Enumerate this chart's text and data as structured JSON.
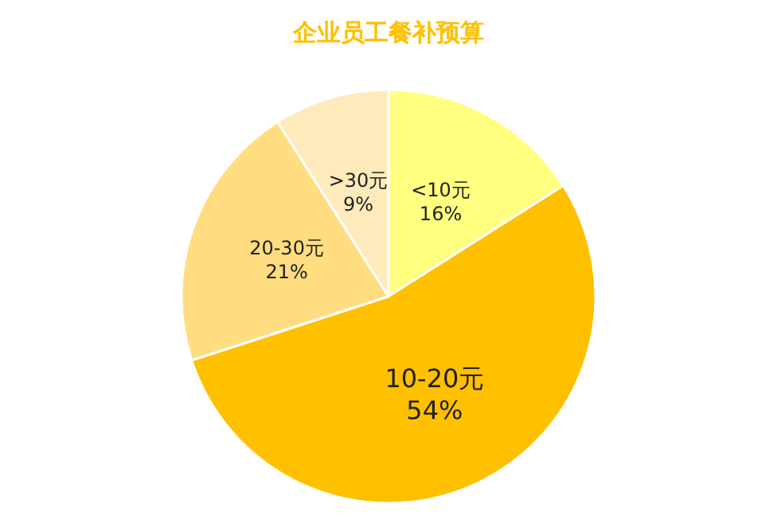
{
  "chart_data": {
    "type": "pie",
    "title": "企业员工餐补预算",
    "categories": [
      "<10元",
      "10-20元",
      "20-30元",
      ">30元"
    ],
    "values": [
      16,
      54,
      21,
      9
    ],
    "value_labels": [
      "16%",
      "54%",
      "21%",
      "9%"
    ],
    "colors": [
      "#ffff80",
      "#ffc000",
      "#ffdd80",
      "#ffeabb"
    ],
    "legend": false
  }
}
